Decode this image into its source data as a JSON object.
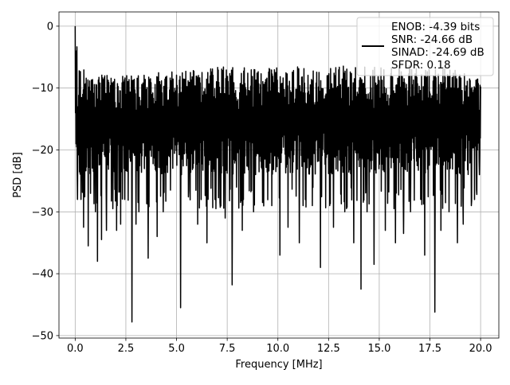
{
  "chart_data": {
    "type": "line",
    "title": "",
    "xlabel": "Frequency [MHz]",
    "ylabel": "PSD [dB]",
    "xlim": [
      -0.8,
      20.9
    ],
    "ylim": [
      -50.4,
      2.3
    ],
    "grid": true,
    "x_ticks": [
      0,
      2.5,
      5,
      7.5,
      10,
      12.5,
      15,
      17.5,
      20
    ],
    "x_tick_labels": [
      "0.0",
      "2.5",
      "5.0",
      "7.5",
      "10.0",
      "12.5",
      "15.0",
      "17.5",
      "20.0"
    ],
    "y_ticks": [
      0,
      -10,
      -20,
      -30,
      -40,
      -50
    ],
    "y_tick_labels": [
      "0",
      "−10",
      "−20",
      "−30",
      "−40",
      "−50"
    ],
    "legend": {
      "placement": "top-right",
      "entries": [
        "ENOB: -4.39 bits",
        "SNR: -24.66 dB",
        "SINAD: -24.69 dB",
        "SFDR: 0.18"
      ]
    },
    "series": [
      {
        "color": "#000000",
        "x_range": [
          0,
          20
        ],
        "peak": {
          "x": 0.0,
          "y": 0.0
        },
        "typical_band": [
          -24,
          -8
        ],
        "upper_envelope": [
          [
            0.1,
            -3
          ],
          [
            0.2,
            -6
          ],
          [
            0.4,
            -7
          ],
          [
            1.0,
            -8
          ],
          [
            2.0,
            -7.5
          ],
          [
            3.0,
            -8
          ],
          [
            4.0,
            -7.5
          ],
          [
            5.0,
            -7
          ],
          [
            6.0,
            -7
          ],
          [
            7.0,
            -6.5
          ],
          [
            8.0,
            -6.5
          ],
          [
            9.0,
            -7
          ],
          [
            10.0,
            -6
          ],
          [
            11.0,
            -6.5
          ],
          [
            12.0,
            -6.5
          ],
          [
            13.0,
            -6.5
          ],
          [
            14.0,
            -6
          ],
          [
            15.0,
            -6.5
          ],
          [
            16.0,
            -6
          ],
          [
            17.0,
            -6.5
          ],
          [
            18.0,
            -6.5
          ],
          [
            19.0,
            -7
          ],
          [
            20.0,
            -9
          ]
        ],
        "deep_dips": [
          [
            0.12,
            -28
          ],
          [
            0.28,
            -28
          ],
          [
            0.42,
            -32.5
          ],
          [
            0.65,
            -35.5
          ],
          [
            1.0,
            -30
          ],
          [
            1.1,
            -38
          ],
          [
            1.3,
            -34.5
          ],
          [
            1.55,
            -33
          ],
          [
            1.85,
            -29.5
          ],
          [
            2.05,
            -33
          ],
          [
            2.25,
            -32
          ],
          [
            2.45,
            -28
          ],
          [
            2.8,
            -47.8
          ],
          [
            3.0,
            -32
          ],
          [
            3.15,
            -30
          ],
          [
            3.6,
            -37.5
          ],
          [
            4.05,
            -34
          ],
          [
            4.35,
            -30
          ],
          [
            4.7,
            -26.5
          ],
          [
            5.2,
            -45.5
          ],
          [
            5.6,
            -26.5
          ],
          [
            6.05,
            -32
          ],
          [
            6.5,
            -35
          ],
          [
            6.95,
            -29.5
          ],
          [
            7.15,
            -28.5
          ],
          [
            7.4,
            -31
          ],
          [
            7.75,
            -41.8
          ],
          [
            8.25,
            -33
          ],
          [
            8.8,
            -30
          ],
          [
            9.25,
            -28.5
          ],
          [
            9.7,
            -29
          ],
          [
            10.1,
            -37
          ],
          [
            10.5,
            -32.5
          ],
          [
            11.05,
            -35
          ],
          [
            11.25,
            -29
          ],
          [
            11.7,
            -29
          ],
          [
            12.1,
            -39
          ],
          [
            12.55,
            -29
          ],
          [
            12.75,
            -32.5
          ],
          [
            13.3,
            -30
          ],
          [
            13.75,
            -35
          ],
          [
            14.1,
            -42.5
          ],
          [
            14.4,
            -30
          ],
          [
            14.75,
            -38.5
          ],
          [
            15.3,
            -33
          ],
          [
            15.8,
            -35
          ],
          [
            16.2,
            -33.5
          ],
          [
            16.55,
            -30
          ],
          [
            17.05,
            -28
          ],
          [
            17.25,
            -37
          ],
          [
            17.75,
            -46.2
          ],
          [
            18.05,
            -33
          ],
          [
            18.45,
            -30
          ],
          [
            18.85,
            -35
          ],
          [
            19.15,
            -32
          ],
          [
            19.55,
            -29
          ],
          [
            19.8,
            -26.5
          ],
          [
            19.95,
            -24
          ]
        ]
      }
    ]
  }
}
